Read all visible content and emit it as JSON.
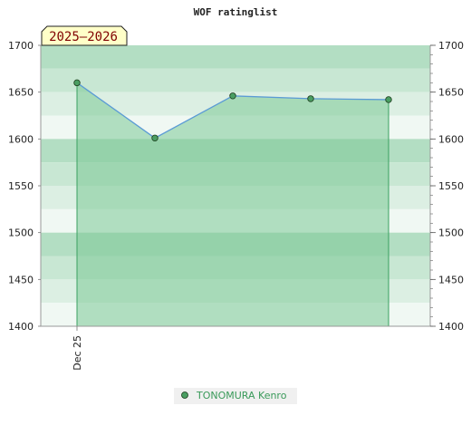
{
  "chart_data": {
    "type": "area",
    "title": "WOF ratinglist",
    "season_badge": "2025–2026",
    "x_tick_labels": [
      "Dec 25"
    ],
    "ylim": [
      1400,
      1700
    ],
    "y_ticks": [
      1400,
      1450,
      1500,
      1550,
      1600,
      1650,
      1700
    ],
    "series": [
      {
        "name": "TONOMURA Kenro",
        "values": [
          1660,
          1601,
          1646,
          1643,
          1642
        ]
      }
    ],
    "legend_position": "bottom-center",
    "colors": {
      "line": "#5b9bd5",
      "fill": "#7cc895",
      "marker": "#4a9e62",
      "legend_text": "#3a9a5a",
      "badge_bg": "#ffffc8",
      "badge_text": "#800000"
    }
  }
}
